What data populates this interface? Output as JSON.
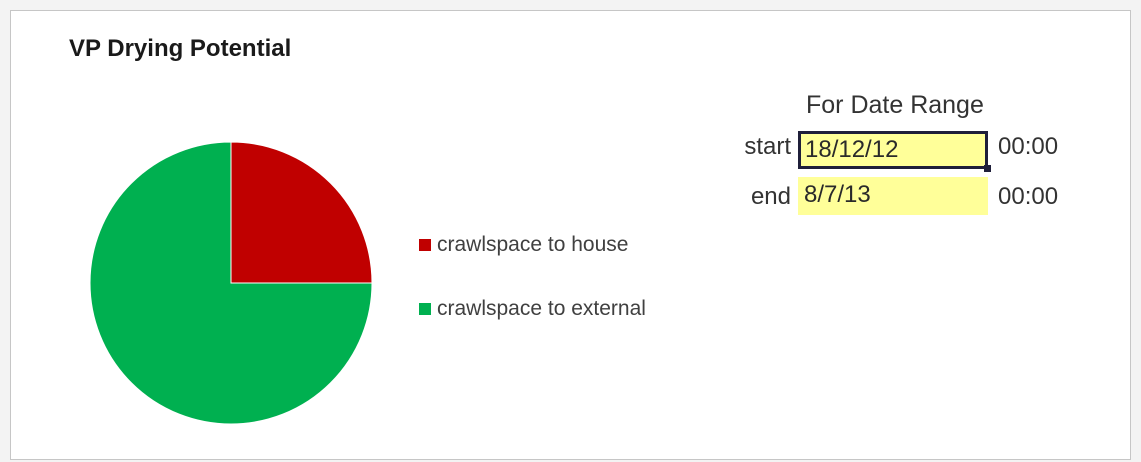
{
  "chart_data": {
    "type": "pie",
    "title": "VP Drying Potential",
    "categories": [
      "crawlspace to house",
      "crawlspace to external"
    ],
    "values": [
      25,
      75
    ],
    "colors": [
      "#c00000",
      "#00b050"
    ],
    "start_angle_deg": 0,
    "direction": "clockwise",
    "legend_position": "right"
  },
  "date_range": {
    "heading": "For Date Range",
    "start": {
      "label": "start",
      "date": "18/12/12",
      "time": "00:00"
    },
    "end": {
      "label": "end",
      "date": "8/7/13",
      "time": "00:00"
    },
    "highlight_color": "#ffff99"
  }
}
